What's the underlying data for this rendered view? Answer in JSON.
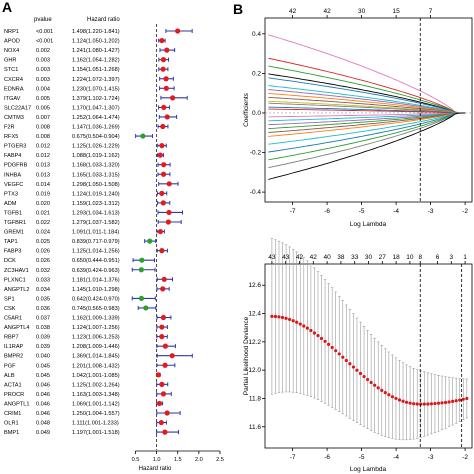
{
  "panel_labels": {
    "a": "A",
    "b": "B"
  },
  "colors": {
    "risk": "#e41a1c",
    "protective": "#2ca02c",
    "ci": "#2b3aa8",
    "ref_line": "#333333",
    "cv_point": "#d7191c",
    "cv_bar": "#9a9a9a"
  },
  "chart_data": [
    {
      "type": "forest",
      "headers": {
        "gene": "",
        "pvalue": "pvalue",
        "hr": "Hazard ratio"
      },
      "xlabel": "Hazard ratio",
      "x_ticks": [
        "0.5",
        "1.0",
        "1.5",
        "2.0",
        "2.5"
      ],
      "x_tick_values": [
        0.5,
        1.0,
        1.5,
        2.0,
        2.5
      ],
      "xlim": [
        0.3,
        2.5
      ],
      "ref_value": 1.0,
      "rows": [
        {
          "gene": "NRP1",
          "p": "<0.001",
          "hr_text": "1.498(1.220-1.841)",
          "hr": 1.498,
          "lo": 1.22,
          "hi": 1.841
        },
        {
          "gene": "APOD",
          "p": "<0.001",
          "hr_text": "1.124(1.050-1.202)",
          "hr": 1.124,
          "lo": 1.05,
          "hi": 1.202
        },
        {
          "gene": "NOX4",
          "p": "0.002",
          "hr_text": "1.241(1.080-1.427)",
          "hr": 1.241,
          "lo": 1.08,
          "hi": 1.427
        },
        {
          "gene": "GHR",
          "p": "0.003",
          "hr_text": "1.162(1.054-1.282)",
          "hr": 1.162,
          "lo": 1.054,
          "hi": 1.282
        },
        {
          "gene": "STC1",
          "p": "0.003",
          "hr_text": "1.154(1.051-1.268)",
          "hr": 1.154,
          "lo": 1.051,
          "hi": 1.268
        },
        {
          "gene": "CXCR4",
          "p": "0.003",
          "hr_text": "1.224(1.072-1.397)",
          "hr": 1.224,
          "lo": 1.072,
          "hi": 1.397
        },
        {
          "gene": "EDNRA",
          "p": "0.004",
          "hr_text": "1.230(1.070-1.415)",
          "hr": 1.23,
          "lo": 1.07,
          "hi": 1.415
        },
        {
          "gene": "ITGAV",
          "p": "0.005",
          "hr_text": "1.379(1.102-1.724)",
          "hr": 1.379,
          "lo": 1.102,
          "hi": 1.724
        },
        {
          "gene": "SLC22A17",
          "p": "0.005",
          "hr_text": "1.170(1.047-1.307)",
          "hr": 1.17,
          "lo": 1.047,
          "hi": 1.307
        },
        {
          "gene": "CMTM3",
          "p": "0.007",
          "hr_text": "1.252(1.064-1.474)",
          "hr": 1.252,
          "lo": 1.064,
          "hi": 1.474
        },
        {
          "gene": "F2R",
          "p": "0.008",
          "hr_text": "1.147(1.036-1.269)",
          "hr": 1.147,
          "lo": 1.036,
          "hi": 1.269
        },
        {
          "gene": "RFX5",
          "p": "0.008",
          "hr_text": "0.675(0.504-0.904)",
          "hr": 0.675,
          "lo": 0.504,
          "hi": 0.904
        },
        {
          "gene": "PTGER3",
          "p": "0.012",
          "hr_text": "1.125(1.026-1.229)",
          "hr": 1.125,
          "lo": 1.026,
          "hi": 1.229
        },
        {
          "gene": "FABP4",
          "p": "0.012",
          "hr_text": "1.088(1.019-1.162)",
          "hr": 1.088,
          "lo": 1.019,
          "hi": 1.162
        },
        {
          "gene": "PDGFRB",
          "p": "0.013",
          "hr_text": "1.168(1.033-1.320)",
          "hr": 1.168,
          "lo": 1.033,
          "hi": 1.32
        },
        {
          "gene": "INHBA",
          "p": "0.013",
          "hr_text": "1.165(1.033-1.315)",
          "hr": 1.165,
          "lo": 1.033,
          "hi": 1.315
        },
        {
          "gene": "VEGFC",
          "p": "0.014",
          "hr_text": "1.298(1.050-1.508)",
          "hr": 1.298,
          "lo": 1.05,
          "hi": 1.508
        },
        {
          "gene": "PTX3",
          "p": "0.019",
          "hr_text": "1.124(1.019-1.240)",
          "hr": 1.124,
          "lo": 1.019,
          "hi": 1.24
        },
        {
          "gene": "ADM",
          "p": "0.020",
          "hr_text": "1.159(1.023-1.312)",
          "hr": 1.159,
          "lo": 1.023,
          "hi": 1.312
        },
        {
          "gene": "TGFB1",
          "p": "0.021",
          "hr_text": "1.293(1.034-1.613)",
          "hr": 1.293,
          "lo": 1.034,
          "hi": 1.613
        },
        {
          "gene": "TGFBR1",
          "p": "0.022",
          "hr_text": "1.279(1.037-1.582)",
          "hr": 1.279,
          "lo": 1.037,
          "hi": 1.582
        },
        {
          "gene": "GREM1",
          "p": "0.024",
          "hr_text": "1.091(1.011-1.184)",
          "hr": 1.091,
          "lo": 1.011,
          "hi": 1.184
        },
        {
          "gene": "TAP1",
          "p": "0.025",
          "hr_text": "0.839(0.717-0.979)",
          "hr": 0.839,
          "lo": 0.717,
          "hi": 0.979
        },
        {
          "gene": "FABP3",
          "p": "0.026",
          "hr_text": "1.125(1.014-1.256)",
          "hr": 1.125,
          "lo": 1.014,
          "hi": 1.256
        },
        {
          "gene": "DCK",
          "p": "0.026",
          "hr_text": "0.650(0.444-0.951)",
          "hr": 0.65,
          "lo": 0.444,
          "hi": 0.951
        },
        {
          "gene": "ZC3HAV1",
          "p": "0.032",
          "hr_text": "0.639(0.424-0.963)",
          "hr": 0.639,
          "lo": 0.424,
          "hi": 0.963
        },
        {
          "gene": "PLXNC1",
          "p": "0.033",
          "hr_text": "1.181(1.014-1.376)",
          "hr": 1.181,
          "lo": 1.014,
          "hi": 1.376
        },
        {
          "gene": "ANGPTL2",
          "p": "0.034",
          "hr_text": "1.145(1.010-1.298)",
          "hr": 1.145,
          "lo": 1.01,
          "hi": 1.298
        },
        {
          "gene": "SP1",
          "p": "0.035",
          "hr_text": "0.642(0.424-0.970)",
          "hr": 0.642,
          "lo": 0.424,
          "hi": 0.97
        },
        {
          "gene": "CSK",
          "p": "0.036",
          "hr_text": "0.745(0.565-0.983)",
          "hr": 0.745,
          "lo": 0.565,
          "hi": 0.983
        },
        {
          "gene": "C5AR1",
          "p": "0.037",
          "hr_text": "1.162(1.009-1.339)",
          "hr": 1.162,
          "lo": 1.009,
          "hi": 1.339
        },
        {
          "gene": "ANGPTL4",
          "p": "0.038",
          "hr_text": "1.124(1.007-1.256)",
          "hr": 1.124,
          "lo": 1.007,
          "hi": 1.256
        },
        {
          "gene": "RBP7",
          "p": "0.039",
          "hr_text": "1.123(1.006-1.253)",
          "hr": 1.123,
          "lo": 1.006,
          "hi": 1.253
        },
        {
          "gene": "IL1RAP",
          "p": "0.039",
          "hr_text": "1.208(1.009-1.446)",
          "hr": 1.208,
          "lo": 1.009,
          "hi": 1.446
        },
        {
          "gene": "BMPR2",
          "p": "0.040",
          "hr_text": "1.369(1.014-1.845)",
          "hr": 1.369,
          "lo": 1.014,
          "hi": 1.845
        },
        {
          "gene": "PGF",
          "p": "0.045",
          "hr_text": "1.201(1.008-1.432)",
          "hr": 1.201,
          "lo": 1.008,
          "hi": 1.432
        },
        {
          "gene": "ALB",
          "p": "0.045",
          "hr_text": "1.042(1.001-1.085)",
          "hr": 1.042,
          "lo": 1.001,
          "hi": 1.085
        },
        {
          "gene": "ACTA1",
          "p": "0.046",
          "hr_text": "1.125(1.002-1.264)",
          "hr": 1.125,
          "lo": 1.002,
          "hi": 1.264
        },
        {
          "gene": "PROCR",
          "p": "0.046",
          "hr_text": "1.163(1.003-1.348)",
          "hr": 1.163,
          "lo": 1.003,
          "hi": 1.348
        },
        {
          "gene": "ANGPTL1",
          "p": "0.046",
          "hr_text": "1.069(1.001-1.142)",
          "hr": 1.069,
          "lo": 1.001,
          "hi": 1.142
        },
        {
          "gene": "CRIM1",
          "p": "0.046",
          "hr_text": "1.250(1.004-1.557)",
          "hr": 1.25,
          "lo": 1.004,
          "hi": 1.557
        },
        {
          "gene": "OLR1",
          "p": "0.048",
          "hr_text": "1.111(1.001-1.233)",
          "hr": 1.111,
          "lo": 1.001,
          "hi": 1.233
        },
        {
          "gene": "BMP1",
          "p": "0.049",
          "hr_text": "1.197(1.001-1.518)",
          "hr": 1.197,
          "lo": 1.001,
          "hi": 1.518
        }
      ]
    },
    {
      "type": "line",
      "xlabel": "Log Lambda",
      "ylabel": "Coefficients",
      "xlim": [
        -7.8,
        -1.8
      ],
      "ylim": [
        -0.45,
        0.48
      ],
      "x_ticks": [
        -7,
        -6,
        -5,
        -4,
        -3,
        -2
      ],
      "y_ticks": [
        -0.4,
        -0.2,
        0.0,
        0.2,
        0.4
      ],
      "top_axis_values": [
        42,
        42,
        30,
        15,
        7
      ],
      "top_axis_x": [
        -7.0,
        -6.0,
        -5.0,
        -4.0,
        -3.0
      ],
      "vline_x": -3.3,
      "series": [
        {
          "color": "#e377c2",
          "end": 0.4,
          "mid": 0.15
        },
        {
          "color": "#d62728",
          "end": 0.28,
          "mid": 0.1
        },
        {
          "color": "#000000",
          "end": 0.2,
          "mid": 0.06
        },
        {
          "color": "#1f77b4",
          "end": 0.18,
          "mid": 0.05
        },
        {
          "color": "#2ca02c",
          "end": 0.24,
          "mid": 0.08
        },
        {
          "color": "#17becf",
          "end": 0.14,
          "mid": 0.04
        },
        {
          "color": "#9467bd",
          "end": 0.12,
          "mid": 0.04
        },
        {
          "color": "#ff7f0e",
          "end": 0.1,
          "mid": 0.03
        },
        {
          "color": "#8c564b",
          "end": 0.08,
          "mid": 0.02
        },
        {
          "color": "#bcbd22",
          "end": 0.06,
          "mid": 0.02
        },
        {
          "color": "#7f7f7f",
          "end": 0.05,
          "mid": 0.01
        },
        {
          "color": "#1f77b4",
          "end": 0.03,
          "mid": 0.01
        },
        {
          "color": "#d62728",
          "end": 0.02,
          "mid": 0.005
        },
        {
          "color": "#e377c2",
          "end": -0.02,
          "mid": -0.005
        },
        {
          "color": "#17becf",
          "end": -0.04,
          "mid": -0.01
        },
        {
          "color": "#9467bd",
          "end": -0.06,
          "mid": -0.02
        },
        {
          "color": "#2ca02c",
          "end": -0.08,
          "mid": -0.02
        },
        {
          "color": "#8c564b",
          "end": -0.1,
          "mid": -0.03
        },
        {
          "color": "#ff7f0e",
          "end": -0.12,
          "mid": -0.04
        },
        {
          "color": "#17becf",
          "end": -0.16,
          "mid": -0.05
        },
        {
          "color": "#1f77b4",
          "end": -0.2,
          "mid": -0.07
        },
        {
          "color": "#2ca02c",
          "end": -0.24,
          "mid": -0.09
        },
        {
          "color": "#7f7f7f",
          "end": -0.28,
          "mid": -0.1
        },
        {
          "color": "#000000",
          "end": -0.34,
          "mid": -0.12
        }
      ]
    },
    {
      "type": "scatter",
      "xlabel": "Log Lambda",
      "ylabel": "Partial Likelihood Deviance",
      "xlim": [
        -7.8,
        -1.8
      ],
      "ylim": [
        11.45,
        12.75
      ],
      "x_ticks": [
        -7,
        -6,
        -5,
        -4,
        -3,
        -2
      ],
      "y_ticks": [
        11.6,
        11.8,
        12.0,
        12.2,
        12.4,
        12.6
      ],
      "top_axis_values": [
        43,
        43,
        42,
        42,
        40,
        38,
        33,
        30,
        27,
        18,
        10,
        8,
        6,
        3,
        1
      ],
      "top_axis_x": [
        -7.6,
        -7.2,
        -6.8,
        -6.4,
        -6.0,
        -5.6,
        -5.2,
        -4.8,
        -4.4,
        -4.0,
        -3.6,
        -3.3,
        -2.8,
        -2.4,
        -2.0
      ],
      "vlines_x": [
        -3.3,
        -2.1
      ],
      "curve": {
        "start": 12.38,
        "min_x": -3.3,
        "min_y": 11.76,
        "end": 11.8
      },
      "error_half_width": 0.55
    }
  ]
}
